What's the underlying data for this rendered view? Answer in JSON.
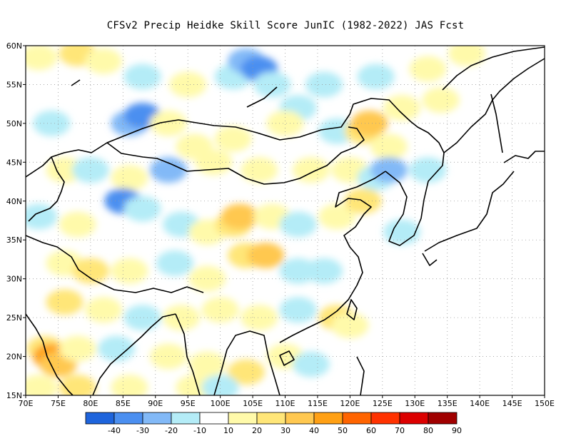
{
  "title": "CFSv2 Precip Heidke Skill Score JunIC (1982-2022) JAS Fcst",
  "map": {
    "lon_ticks": [
      "70E",
      "75E",
      "80E",
      "85E",
      "90E",
      "95E",
      "100E",
      "105E",
      "110E",
      "115E",
      "120E",
      "125E",
      "130E",
      "135E",
      "140E",
      "145E",
      "150E"
    ],
    "lat_ticks": [
      "60N",
      "55N",
      "50N",
      "45N",
      "40N",
      "35N",
      "30N",
      "25N",
      "20N",
      "15N"
    ],
    "lon_range": [
      70,
      150
    ],
    "lat_range": [
      15,
      60
    ],
    "grid": "dotted"
  },
  "colorbar": {
    "labels": [
      "-40",
      "-30",
      "-20",
      "-10",
      "10",
      "20",
      "30",
      "40",
      "50",
      "60",
      "70",
      "80",
      "90"
    ],
    "colors": [
      "#1e64dc",
      "#4b8ff0",
      "#82b9f7",
      "#b4ecf7",
      "#ffffff",
      "#fffaaa",
      "#ffe678",
      "#ffc850",
      "#ffa014",
      "#ff6400",
      "#ff3200",
      "#dc0000",
      "#a00000"
    ]
  },
  "patches": [
    {
      "lon": 72,
      "lat": 58.5,
      "c": "#fffaaa"
    },
    {
      "lon": 78,
      "lat": 59,
      "c": "#ffe678"
    },
    {
      "lon": 82,
      "lat": 58,
      "c": "#fffaaa"
    },
    {
      "lon": 88,
      "lat": 56,
      "c": "#b4ecf7"
    },
    {
      "lon": 95,
      "lat": 55,
      "c": "#fffaaa"
    },
    {
      "lon": 102,
      "lat": 56,
      "c": "#b4ecf7"
    },
    {
      "lon": 104,
      "lat": 58,
      "c": "#82b9f7"
    },
    {
      "lon": 106,
      "lat": 57,
      "c": "#4b8ff0"
    },
    {
      "lon": 108,
      "lat": 55,
      "c": "#b4ecf7"
    },
    {
      "lon": 112,
      "lat": 52,
      "c": "#b4ecf7"
    },
    {
      "lon": 116,
      "lat": 55,
      "c": "#b4ecf7"
    },
    {
      "lon": 124,
      "lat": 56,
      "c": "#b4ecf7"
    },
    {
      "lon": 132,
      "lat": 57,
      "c": "#fffaaa"
    },
    {
      "lon": 138,
      "lat": 59,
      "c": "#fffaaa"
    },
    {
      "lon": 134,
      "lat": 53,
      "c": "#fffaaa"
    },
    {
      "lon": 74,
      "lat": 50,
      "c": "#b4ecf7"
    },
    {
      "lon": 86,
      "lat": 50,
      "c": "#82b9f7"
    },
    {
      "lon": 88,
      "lat": 51,
      "c": "#4b8ff0"
    },
    {
      "lon": 92,
      "lat": 50,
      "c": "#fffaaa"
    },
    {
      "lon": 96,
      "lat": 47,
      "c": "#fffaaa"
    },
    {
      "lon": 102,
      "lat": 48,
      "c": "#fffaaa"
    },
    {
      "lon": 110,
      "lat": 50,
      "c": "#fffaaa"
    },
    {
      "lon": 118,
      "lat": 49,
      "c": "#b4ecf7"
    },
    {
      "lon": 122,
      "lat": 49,
      "c": "#ffe678"
    },
    {
      "lon": 123,
      "lat": 50,
      "c": "#ffc850"
    },
    {
      "lon": 126,
      "lat": 47,
      "c": "#fffaaa"
    },
    {
      "lon": 128,
      "lat": 52,
      "c": "#fffaaa"
    },
    {
      "lon": 76,
      "lat": 44,
      "c": "#fffaaa"
    },
    {
      "lon": 80,
      "lat": 44,
      "c": "#b4ecf7"
    },
    {
      "lon": 86,
      "lat": 43,
      "c": "#fffaaa"
    },
    {
      "lon": 92,
      "lat": 44,
      "c": "#82b9f7"
    },
    {
      "lon": 99,
      "lat": 45,
      "c": "#fffaaa"
    },
    {
      "lon": 106,
      "lat": 44,
      "c": "#fffaaa"
    },
    {
      "lon": 114,
      "lat": 44,
      "c": "#fffaaa"
    },
    {
      "lon": 120,
      "lat": 44,
      "c": "#fffaaa"
    },
    {
      "lon": 124,
      "lat": 43,
      "c": "#b4ecf7"
    },
    {
      "lon": 126,
      "lat": 44,
      "c": "#82b9f7"
    },
    {
      "lon": 132,
      "lat": 44,
      "c": "#b4ecf7"
    },
    {
      "lon": 72,
      "lat": 38,
      "c": "#b4ecf7"
    },
    {
      "lon": 78,
      "lat": 37,
      "c": "#fffaaa"
    },
    {
      "lon": 85,
      "lat": 40,
      "c": "#4b8ff0"
    },
    {
      "lon": 88,
      "lat": 39,
      "c": "#b4ecf7"
    },
    {
      "lon": 94,
      "lat": 37,
      "c": "#b4ecf7"
    },
    {
      "lon": 98,
      "lat": 36,
      "c": "#fffaaa"
    },
    {
      "lon": 102,
      "lat": 37,
      "c": "#ffe678"
    },
    {
      "lon": 103,
      "lat": 38,
      "c": "#ffc850"
    },
    {
      "lon": 108,
      "lat": 38,
      "c": "#fffaaa"
    },
    {
      "lon": 112,
      "lat": 37,
      "c": "#b4ecf7"
    },
    {
      "lon": 118,
      "lat": 38,
      "c": "#fffaaa"
    },
    {
      "lon": 122,
      "lat": 40,
      "c": "#ffe678"
    },
    {
      "lon": 128,
      "lat": 36,
      "c": "#b4ecf7"
    },
    {
      "lon": 76,
      "lat": 32,
      "c": "#fffaaa"
    },
    {
      "lon": 80,
      "lat": 31,
      "c": "#ffe678"
    },
    {
      "lon": 86,
      "lat": 31,
      "c": "#fffaaa"
    },
    {
      "lon": 93,
      "lat": 32,
      "c": "#b4ecf7"
    },
    {
      "lon": 98,
      "lat": 30,
      "c": "#fffaaa"
    },
    {
      "lon": 104,
      "lat": 33,
      "c": "#ffe678"
    },
    {
      "lon": 107,
      "lat": 33,
      "c": "#ffc850"
    },
    {
      "lon": 112,
      "lat": 31,
      "c": "#b4ecf7"
    },
    {
      "lon": 116,
      "lat": 31,
      "c": "#b4ecf7"
    },
    {
      "lon": 76,
      "lat": 27,
      "c": "#ffe678"
    },
    {
      "lon": 82,
      "lat": 26,
      "c": "#fffaaa"
    },
    {
      "lon": 88,
      "lat": 25,
      "c": "#b4ecf7"
    },
    {
      "lon": 94,
      "lat": 25,
      "c": "#fffaaa"
    },
    {
      "lon": 100,
      "lat": 26,
      "c": "#fffaaa"
    },
    {
      "lon": 106,
      "lat": 25,
      "c": "#fffaaa"
    },
    {
      "lon": 112,
      "lat": 26,
      "c": "#b4ecf7"
    },
    {
      "lon": 118,
      "lat": 25,
      "c": "#ffe678"
    },
    {
      "lon": 120,
      "lat": 24,
      "c": "#fffaaa"
    },
    {
      "lon": 73,
      "lat": 21,
      "c": "#ffe678"
    },
    {
      "lon": 74,
      "lat": 20,
      "c": "#ffa014"
    },
    {
      "lon": 75,
      "lat": 19,
      "c": "#ffc850"
    },
    {
      "lon": 78,
      "lat": 21,
      "c": "#fffaaa"
    },
    {
      "lon": 84,
      "lat": 21,
      "c": "#b4ecf7"
    },
    {
      "lon": 92,
      "lat": 20,
      "c": "#fffaaa"
    },
    {
      "lon": 98,
      "lat": 19,
      "c": "#fffaaa"
    },
    {
      "lon": 104,
      "lat": 18,
      "c": "#ffe678"
    },
    {
      "lon": 110,
      "lat": 20,
      "c": "#fffaaa"
    },
    {
      "lon": 114,
      "lat": 19,
      "c": "#b4ecf7"
    },
    {
      "lon": 72,
      "lat": 16,
      "c": "#fffaaa"
    },
    {
      "lon": 78,
      "lat": 16,
      "c": "#ffe678"
    },
    {
      "lon": 86,
      "lat": 16,
      "c": "#fffaaa"
    },
    {
      "lon": 96,
      "lat": 16,
      "c": "#fffaaa"
    },
    {
      "lon": 100,
      "lat": 16,
      "c": "#b4ecf7"
    }
  ]
}
